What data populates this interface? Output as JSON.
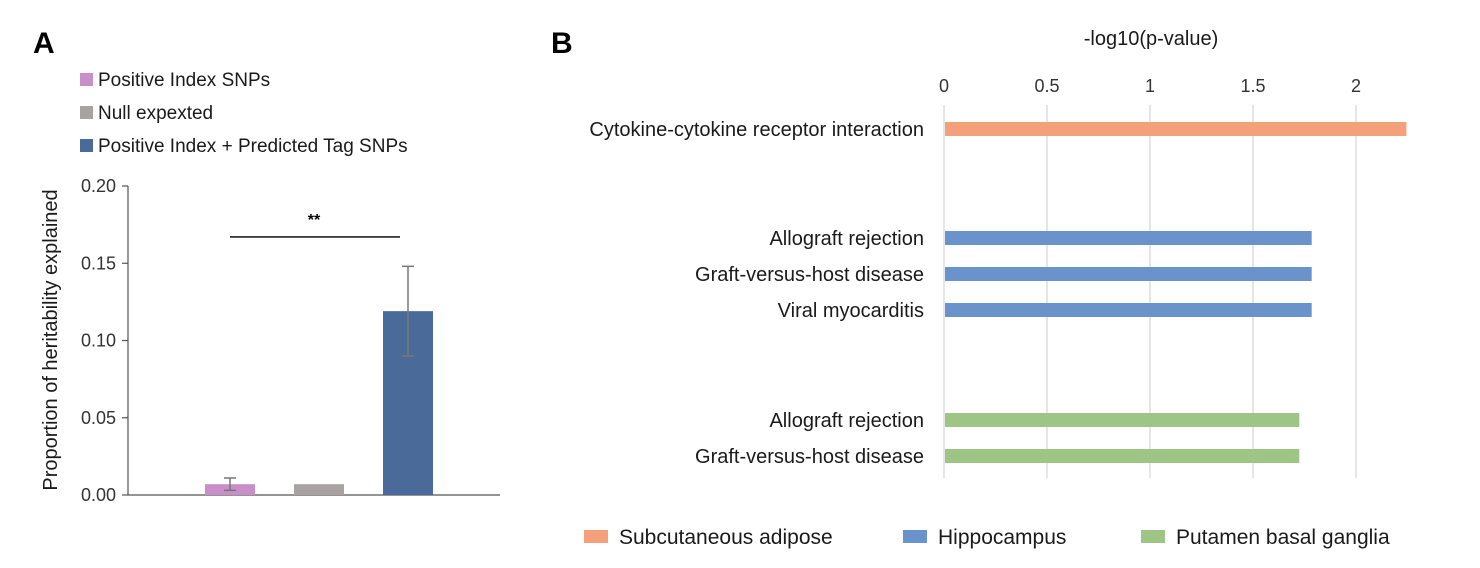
{
  "chart_data": [
    {
      "panel": "A",
      "type": "bar",
      "ylabel": "Proportion of heritability explained",
      "ylim": [
        0,
        0.2
      ],
      "yticks": [
        "0.00",
        "0.05",
        "0.10",
        "0.15",
        "0.20"
      ],
      "legend_position": "top-left",
      "series": [
        {
          "name": "Positive Index SNPs",
          "value": 0.007,
          "error": 0.004,
          "color": "#c98fc9"
        },
        {
          "name": "Null expexted",
          "value": 0.007,
          "error": 0,
          "color": "#a8a2a2"
        },
        {
          "name": "Positive Index + Predicted Tag SNPs",
          "value": 0.119,
          "error": 0.029,
          "color": "#4a6b9a"
        }
      ],
      "significance": {
        "label": "**",
        "from": 0,
        "to": 2,
        "y": 0.167
      }
    },
    {
      "panel": "B",
      "type": "bar",
      "orientation": "horizontal",
      "xlabel": "-log10(p-value)",
      "xlim": [
        0,
        2.25
      ],
      "xticks": [
        "0",
        "0.5",
        "1",
        "1.5",
        "2"
      ],
      "grid": true,
      "legend_position": "bottom",
      "series": [
        {
          "name": "Subcutaneous adipose",
          "color": "#f4a07a",
          "items": [
            {
              "label": "Cytokine-cytokine receptor interaction",
              "value": 2.24
            }
          ]
        },
        {
          "name": "Hippocampus",
          "color": "#6a93cc",
          "items": [
            {
              "label": "Allograft rejection",
              "value": 1.78
            },
            {
              "label": "Graft-versus-host disease",
              "value": 1.78
            },
            {
              "label": "Viral myocarditis",
              "value": 1.78
            }
          ]
        },
        {
          "name": "Putamen basal ganglia",
          "color": "#9cc586",
          "items": [
            {
              "label": "Allograft rejection",
              "value": 1.72
            },
            {
              "label": "Graft-versus-host disease",
              "value": 1.72
            }
          ]
        }
      ]
    }
  ]
}
